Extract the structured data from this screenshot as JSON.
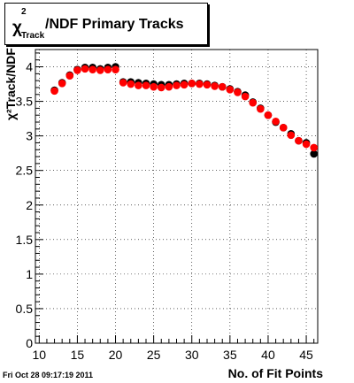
{
  "title": {
    "symbol": "χ",
    "superscript": "2",
    "subscript": "Track",
    "text": "/NDF Primary Tracks"
  },
  "footer": {
    "timestamp": "Fri Oct 28 09:17:19 2011"
  },
  "colors": {
    "series_1": "#000000",
    "series_2": "#ff0000",
    "grid": "#000000",
    "background": "#ffffff"
  },
  "chart_data": {
    "type": "scatter",
    "title": "χ²Track/NDF Primary Tracks",
    "xlabel": "No. of Fit Points",
    "ylabel": "χ²Track/NDF",
    "xlim": [
      9.5,
      46.5
    ],
    "ylim": [
      0,
      4.25
    ],
    "xticks": [
      10,
      15,
      20,
      25,
      30,
      35,
      40,
      45
    ],
    "yticks": [
      0,
      0.5,
      1,
      1.5,
      2,
      2.5,
      3,
      3.5,
      4
    ],
    "xtick_labels": [
      "10",
      "15",
      "20",
      "25",
      "30",
      "35",
      "40",
      "45"
    ],
    "ytick_labels": [
      "0",
      "0.5",
      "1",
      "1.5",
      "2",
      "2.5",
      "3",
      "3.5",
      "4"
    ],
    "grid": true,
    "series": [
      {
        "color": "#000000",
        "x": [
          12,
          13,
          14,
          15,
          16,
          17,
          18,
          19,
          20,
          21,
          22,
          23,
          24,
          25,
          26,
          27,
          28,
          29,
          30,
          31,
          32,
          33,
          34,
          35,
          36,
          37,
          38,
          39,
          40,
          41,
          42,
          43,
          44,
          45,
          46
        ],
        "y": [
          3.66,
          3.77,
          3.88,
          3.96,
          3.99,
          3.99,
          3.97,
          3.99,
          4.0,
          3.78,
          3.78,
          3.77,
          3.76,
          3.75,
          3.74,
          3.74,
          3.75,
          3.76,
          3.76,
          3.76,
          3.75,
          3.73,
          3.71,
          3.68,
          3.64,
          3.59,
          3.49,
          3.4,
          3.3,
          3.2,
          3.12,
          3.03,
          2.93,
          2.9,
          2.74
        ]
      },
      {
        "color": "#ff0000",
        "x": [
          12,
          13,
          14,
          15,
          16,
          17,
          18,
          19,
          20,
          21,
          22,
          23,
          24,
          25,
          26,
          27,
          28,
          29,
          30,
          31,
          32,
          33,
          34,
          35,
          36,
          37,
          38,
          39,
          40,
          41,
          42,
          43,
          44,
          45,
          46
        ],
        "y": [
          3.65,
          3.76,
          3.87,
          3.95,
          3.97,
          3.96,
          3.95,
          3.96,
          3.96,
          3.77,
          3.75,
          3.73,
          3.73,
          3.71,
          3.7,
          3.71,
          3.73,
          3.74,
          3.76,
          3.75,
          3.74,
          3.72,
          3.71,
          3.67,
          3.63,
          3.57,
          3.48,
          3.39,
          3.3,
          3.21,
          3.12,
          3.01,
          2.93,
          2.88,
          2.83
        ]
      }
    ]
  }
}
